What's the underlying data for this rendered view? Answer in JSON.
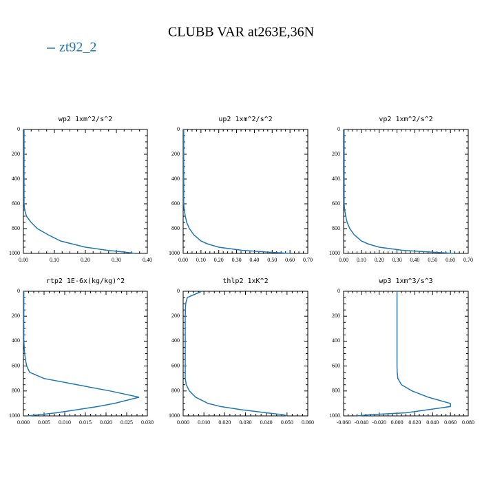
{
  "title": "CLUBB VAR at263E,36N",
  "chart_data": [
    {
      "type": "line",
      "title": "wp2  1xm^2/s^2",
      "y": [
        0,
        50,
        100,
        200,
        300,
        400,
        500,
        550,
        600,
        650,
        700,
        750,
        800,
        850,
        900,
        925,
        950,
        975,
        990,
        1000
      ],
      "series": [
        {
          "name": "zt92_2",
          "color": "#1f77b4",
          "values": [
            0.002,
            0.002,
            0.002,
            0.002,
            0.002,
            0.002,
            0.002,
            0.002,
            0.002,
            0.004,
            0.01,
            0.025,
            0.045,
            0.08,
            0.12,
            0.16,
            0.2,
            0.27,
            0.33,
            0.36
          ]
        }
      ],
      "xlim": [
        0,
        0.4
      ],
      "ylim": [
        1000,
        0
      ],
      "xticks": [
        {
          "value": 0,
          "label": "0.00"
        },
        {
          "value": 0.1,
          "label": "0.10"
        },
        {
          "value": 0.2,
          "label": "0.20"
        },
        {
          "value": 0.3,
          "label": "0.30"
        },
        {
          "value": 0.4,
          "label": "0.40"
        }
      ],
      "yticks": [
        0,
        200,
        400,
        600,
        800,
        1000
      ]
    },
    {
      "type": "line",
      "title": "up2  1xm^2/s^2",
      "y": [
        0,
        50,
        100,
        200,
        300,
        400,
        500,
        550,
        600,
        650,
        700,
        750,
        800,
        850,
        900,
        925,
        950,
        975,
        990,
        1000
      ],
      "series": [
        {
          "color": "#1f77b4",
          "values": [
            0.003,
            0.003,
            0.003,
            0.003,
            0.003,
            0.003,
            0.003,
            0.003,
            0.003,
            0.006,
            0.012,
            0.02,
            0.035,
            0.06,
            0.1,
            0.14,
            0.2,
            0.33,
            0.48,
            0.6
          ]
        }
      ],
      "xlim": [
        0,
        0.7
      ],
      "ylim": [
        1000,
        0
      ],
      "xticks": [
        {
          "value": 0,
          "label": "0.00"
        },
        {
          "value": 0.1,
          "label": "0.10"
        },
        {
          "value": 0.2,
          "label": "0.20"
        },
        {
          "value": 0.3,
          "label": "0.30"
        },
        {
          "value": 0.4,
          "label": "0.40"
        },
        {
          "value": 0.5,
          "label": "0.50"
        },
        {
          "value": 0.6,
          "label": "0.60"
        },
        {
          "value": 0.7,
          "label": "0.70"
        }
      ],
      "yticks": [
        0,
        200,
        400,
        600,
        800,
        1000
      ]
    },
    {
      "type": "line",
      "title": "vp2  1xm^2/s^2",
      "y": [
        0,
        50,
        100,
        200,
        300,
        400,
        500,
        550,
        600,
        650,
        700,
        750,
        800,
        850,
        900,
        925,
        950,
        975,
        990,
        1000
      ],
      "series": [
        {
          "color": "#1f77b4",
          "values": [
            0.003,
            0.003,
            0.003,
            0.003,
            0.003,
            0.003,
            0.003,
            0.003,
            0.003,
            0.006,
            0.012,
            0.02,
            0.035,
            0.06,
            0.1,
            0.14,
            0.2,
            0.33,
            0.5,
            0.62
          ]
        }
      ],
      "xlim": [
        0,
        0.7
      ],
      "ylim": [
        1000,
        0
      ],
      "xticks": [
        {
          "value": 0,
          "label": "0.00"
        },
        {
          "value": 0.1,
          "label": "0.10"
        },
        {
          "value": 0.2,
          "label": "0.20"
        },
        {
          "value": 0.3,
          "label": "0.30"
        },
        {
          "value": 0.4,
          "label": "0.40"
        },
        {
          "value": 0.5,
          "label": "0.50"
        },
        {
          "value": 0.6,
          "label": "0.60"
        },
        {
          "value": 0.7,
          "label": "0.70"
        }
      ],
      "yticks": [
        0,
        200,
        400,
        600,
        800,
        1000
      ]
    },
    {
      "type": "line",
      "title": "rtp2  1E-6x(kg/kg)^2",
      "y": [
        0,
        50,
        100,
        200,
        300,
        400,
        500,
        550,
        600,
        650,
        700,
        750,
        800,
        850,
        900,
        925,
        950,
        975,
        990,
        1000
      ],
      "series": [
        {
          "color": "#1f77b4",
          "values": [
            0.0001,
            0.0001,
            0.0001,
            0.0001,
            0.0001,
            0.0001,
            0.0003,
            0.0005,
            0.0008,
            0.0015,
            0.005,
            0.013,
            0.021,
            0.028,
            0.022,
            0.018,
            0.013,
            0.008,
            0.004,
            0.001
          ]
        }
      ],
      "xlim": [
        0,
        0.03
      ],
      "ylim": [
        1000,
        0
      ],
      "xticks": [
        {
          "value": 0,
          "label": "0.000"
        },
        {
          "value": 0.005,
          "label": "0.005"
        },
        {
          "value": 0.01,
          "label": "0.010"
        },
        {
          "value": 0.015,
          "label": "0.015"
        },
        {
          "value": 0.02,
          "label": "0.020"
        },
        {
          "value": 0.025,
          "label": "0.025"
        },
        {
          "value": 0.03,
          "label": "0.030"
        }
      ],
      "yticks": [
        0,
        200,
        400,
        600,
        800,
        1000
      ]
    },
    {
      "type": "line",
      "title": "thlp2  1xK^2",
      "y": [
        0,
        50,
        100,
        200,
        300,
        400,
        500,
        550,
        600,
        650,
        700,
        750,
        800,
        850,
        900,
        925,
        950,
        975,
        990,
        1000
      ],
      "series": [
        {
          "color": "#1f77b4",
          "values": [
            0.009,
            0.002,
            0.0012,
            0.001,
            0.001,
            0.001,
            0.001,
            0.001,
            0.001,
            0.001,
            0.001,
            0.0015,
            0.003,
            0.006,
            0.012,
            0.018,
            0.028,
            0.04,
            0.048,
            0.05
          ]
        }
      ],
      "xlim": [
        0,
        0.06
      ],
      "ylim": [
        1000,
        0
      ],
      "xticks": [
        {
          "value": 0,
          "label": "0.000"
        },
        {
          "value": 0.01,
          "label": "0.010"
        },
        {
          "value": 0.02,
          "label": "0.020"
        },
        {
          "value": 0.03,
          "label": "0.030"
        },
        {
          "value": 0.04,
          "label": "0.040"
        },
        {
          "value": 0.05,
          "label": "0.050"
        },
        {
          "value": 0.06,
          "label": "0.060"
        }
      ],
      "yticks": [
        0,
        200,
        400,
        600,
        800,
        1000
      ]
    },
    {
      "type": "line",
      "title": "wp3  1xm^3/s^3",
      "y": [
        0,
        50,
        100,
        200,
        300,
        400,
        500,
        550,
        600,
        650,
        700,
        750,
        800,
        850,
        900,
        925,
        950,
        975,
        990,
        1000
      ],
      "series": [
        {
          "color": "#1f77b4",
          "values": [
            0,
            0,
            0,
            0,
            0,
            0,
            0,
            0,
            0,
            0.0002,
            0.001,
            0.005,
            0.017,
            0.035,
            0.06,
            0.06,
            0.035,
            0.01,
            -0.03,
            -0.045
          ]
        }
      ],
      "xlim": [
        -0.06,
        0.08
      ],
      "ylim": [
        1000,
        0
      ],
      "xticks": [
        {
          "value": -0.06,
          "label": "-0.060"
        },
        {
          "value": -0.04,
          "label": "-0.040"
        },
        {
          "value": -0.02,
          "label": "-0.020"
        },
        {
          "value": 0,
          "label": "0.000"
        },
        {
          "value": 0.02,
          "label": "0.020"
        },
        {
          "value": 0.04,
          "label": "0.040"
        },
        {
          "value": 0.06,
          "label": "0.060"
        },
        {
          "value": 0.08,
          "label": "0.080"
        }
      ],
      "yticks": [
        0,
        200,
        400,
        600,
        800,
        1000
      ]
    }
  ]
}
